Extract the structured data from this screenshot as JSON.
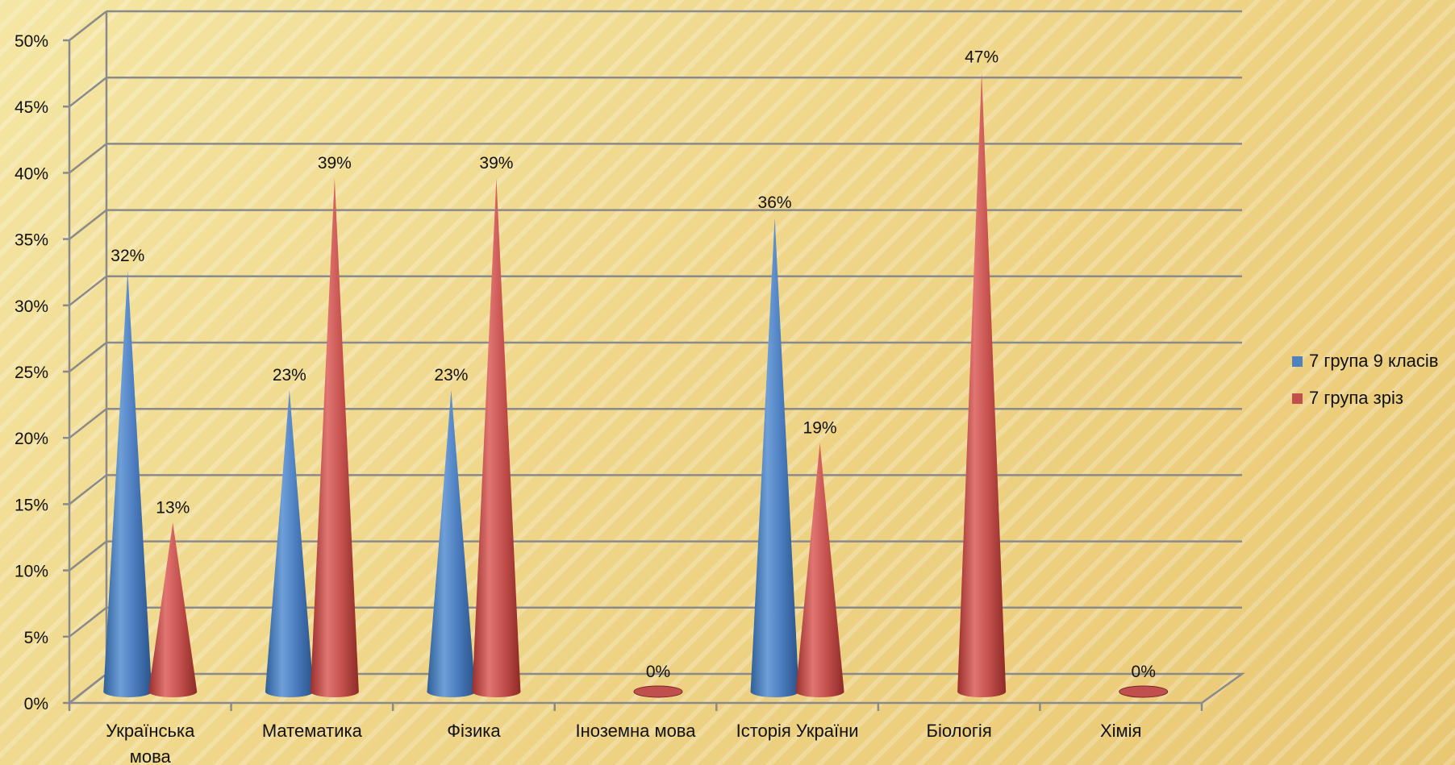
{
  "chart_data": {
    "type": "bar",
    "style": "3d-cone",
    "categories": [
      "Українська мова",
      "Математика",
      "Фізика",
      "Іноземна мова",
      "Історія України",
      "Біологія",
      "Хімія"
    ],
    "series": [
      {
        "name": "7 група 9 класів",
        "color": "#4f81bd",
        "values": [
          32,
          23,
          23,
          null,
          36,
          null,
          null
        ],
        "labels": [
          "32%",
          "23%",
          "23%",
          "",
          "36%",
          "",
          ""
        ]
      },
      {
        "name": "7 група зріз",
        "color": "#c0504d",
        "values": [
          13,
          39,
          39,
          0,
          19,
          47,
          0
        ],
        "labels": [
          "13%",
          "39%",
          "39%",
          "0%",
          "19%",
          "47%",
          "0%"
        ]
      }
    ],
    "y_ticks": [
      "0%",
      "5%",
      "10%",
      "15%",
      "20%",
      "25%",
      "30%",
      "35%",
      "40%",
      "45%",
      "50%"
    ],
    "ylim": [
      0,
      50
    ],
    "grid": true,
    "legend_position": "right",
    "title": "",
    "xlabel": "",
    "ylabel": ""
  },
  "legend": {
    "items": [
      {
        "label": "7 група 9 класів",
        "color": "#4f81bd"
      },
      {
        "label": "7 група зріз",
        "color": "#c0504d"
      }
    ]
  }
}
